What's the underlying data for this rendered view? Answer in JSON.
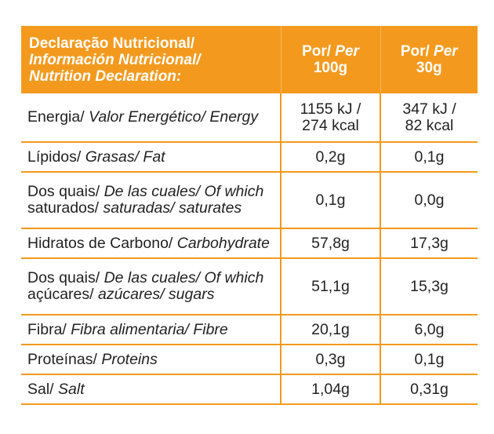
{
  "header": {
    "label_line1": "Declaração Nutricional/",
    "label_line2": "Información Nutricional/",
    "label_line3": "Nutrition Declaration:",
    "col1_pt": "Por/ ",
    "col1_en": "Per",
    "col1_qty": "100g",
    "col2_pt": "Por/ ",
    "col2_en": "Per",
    "col2_qty": "30g"
  },
  "rows": [
    {
      "pt": "Energia/ ",
      "es_en": "Valor Energético/ Energy",
      "pt2": "",
      "es_en2": "",
      "v100": "1155 kJ /",
      "v100b": "274 kcal",
      "v30": "347 kJ /",
      "v30b": "82 kcal"
    },
    {
      "pt": "Lípidos/ ",
      "es_en": "Grasas/ Fat",
      "pt2": "",
      "es_en2": "",
      "v100": "0,2g",
      "v100b": "",
      "v30": "0,1g",
      "v30b": ""
    },
    {
      "pt": "Dos quais/ ",
      "es_en": "De las cuales/ Of which",
      "pt2": "saturados/ ",
      "es_en2": "saturadas/ saturates",
      "v100": "0,1g",
      "v100b": "",
      "v30": "0,0g",
      "v30b": ""
    },
    {
      "pt": "Hidratos de Carbono/ ",
      "es_en": "Carbohydrate",
      "pt2": "",
      "es_en2": "",
      "v100": "57,8g",
      "v100b": "",
      "v30": "17,3g",
      "v30b": ""
    },
    {
      "pt": "Dos quais/ ",
      "es_en": "De las cuales/ Of which",
      "pt2": "açúcares/ ",
      "es_en2": "azúcares/ sugars",
      "v100": "51,1g",
      "v100b": "",
      "v30": "15,3g",
      "v30b": ""
    },
    {
      "pt": "Fibra/ ",
      "es_en": "Fibra alimentaria/ Fibre",
      "pt2": "",
      "es_en2": "",
      "v100": "20,1g",
      "v100b": "",
      "v30": "6,0g",
      "v30b": ""
    },
    {
      "pt": "Proteínas/ ",
      "es_en": "Proteins",
      "pt2": "",
      "es_en2": "",
      "v100": "0,3g",
      "v100b": "",
      "v30": "0,1g",
      "v30b": ""
    },
    {
      "pt": "Sal/ ",
      "es_en": "Salt",
      "pt2": "",
      "es_en2": "",
      "v100": "1,04g",
      "v100b": "",
      "v30": "0,31g",
      "v30b": ""
    }
  ],
  "colors": {
    "accent": "#f39a1e",
    "header_text": "#ffffff",
    "body_text": "#222222"
  }
}
